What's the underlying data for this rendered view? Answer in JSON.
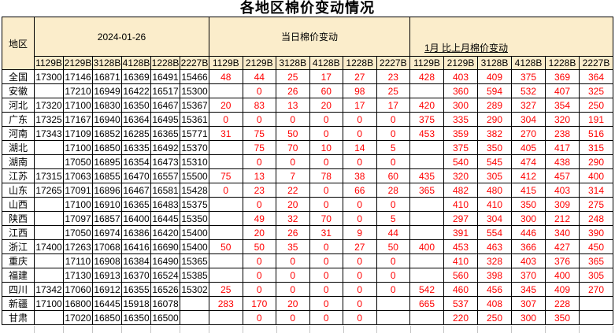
{
  "colors": {
    "header_bg": "#FBEDCB",
    "change_color": "#FF0000",
    "border": "#000000",
    "gridline_stub": "#C4C4C4"
  },
  "chart_data": {
    "type": "table",
    "title": "各地区棉价变动情况",
    "region_header": "地区",
    "column_groups": [
      "2024-01-26",
      "当日棉价变动",
      "1月 比上月棉价变动"
    ],
    "columns_per_group": [
      "1129B",
      "2129B",
      "3128B",
      "4128B",
      "1228B",
      "2227B"
    ],
    "rows": [
      {
        "region": "全国",
        "price": [
          "17300",
          "17146",
          "16871",
          "16369",
          "16491",
          "15466"
        ],
        "daily_change": [
          "48",
          "44",
          "25",
          "17",
          "27",
          "23"
        ],
        "monthly_change": [
          "428",
          "403",
          "409",
          "375",
          "369",
          "364"
        ]
      },
      {
        "region": "安徽",
        "price": [
          "",
          "17210",
          "16949",
          "16422",
          "16517",
          "15300"
        ],
        "daily_change": [
          "",
          "0",
          "26",
          "60",
          "98",
          "25"
        ],
        "monthly_change": [
          "",
          "360",
          "594",
          "532",
          "407",
          "325"
        ]
      },
      {
        "region": "河北",
        "price": [
          "17320",
          "17100",
          "16830",
          "16350",
          "16467",
          "15367"
        ],
        "daily_change": [
          "20",
          "83",
          "13",
          "20",
          "17",
          "17"
        ],
        "monthly_change": [
          "420",
          "300",
          "289",
          "327",
          "354",
          "250"
        ]
      },
      {
        "region": "广东",
        "price": [
          "17325",
          "17167",
          "16940",
          "16364",
          "16495",
          "15361"
        ],
        "daily_change": [
          "0",
          "0",
          "0",
          "0",
          "0",
          "0"
        ],
        "monthly_change": [
          "375",
          "335",
          "290",
          "304",
          "320",
          "191"
        ]
      },
      {
        "region": "河南",
        "price": [
          "17343",
          "17109",
          "16852",
          "16285",
          "16365",
          "15771"
        ],
        "daily_change": [
          "31",
          "75",
          "50",
          "0",
          "0",
          "0"
        ],
        "monthly_change": [
          "453",
          "359",
          "382",
          "270",
          "238",
          "516"
        ]
      },
      {
        "region": "湖北",
        "price": [
          "",
          "17100",
          "16850",
          "16335",
          "16492",
          "15370"
        ],
        "daily_change": [
          "",
          "75",
          "70",
          "10",
          "14",
          "5"
        ],
        "monthly_change": [
          "",
          "375",
          "350",
          "405",
          "417",
          "315"
        ]
      },
      {
        "region": "湖南",
        "price": [
          "",
          "17050",
          "16895",
          "16354",
          "16473",
          "15310"
        ],
        "daily_change": [
          "",
          "0",
          "0",
          "0",
          "0",
          "0"
        ],
        "monthly_change": [
          "",
          "540",
          "545",
          "474",
          "438",
          "290"
        ]
      },
      {
        "region": "江苏",
        "price": [
          "17315",
          "17063",
          "16855",
          "16470",
          "16557",
          "15500"
        ],
        "daily_change": [
          "75",
          "13",
          "7",
          "78",
          "38",
          "60"
        ],
        "monthly_change": [
          "435",
          "320",
          "305",
          "412",
          "457",
          "400"
        ]
      },
      {
        "region": "山东",
        "price": [
          "17265",
          "17091",
          "16896",
          "16467",
          "16581",
          "15428"
        ],
        "daily_change": [
          "0",
          "23",
          "22",
          "0",
          "66",
          "28"
        ],
        "monthly_change": [
          "365",
          "482",
          "480",
          "415",
          "403",
          "314"
        ]
      },
      {
        "region": "山西",
        "price": [
          "",
          "17100",
          "16910",
          "16365",
          "16483",
          "15375"
        ],
        "daily_change": [
          "",
          "0",
          "20",
          "0",
          "0",
          "0"
        ],
        "monthly_change": [
          "",
          "410",
          "410",
          "350",
          "309",
          "275"
        ]
      },
      {
        "region": "陕西",
        "price": [
          "",
          "17097",
          "16857",
          "16400",
          "16445",
          "15350"
        ],
        "daily_change": [
          "",
          "49",
          "32",
          "70",
          "0",
          "5"
        ],
        "monthly_change": [
          "",
          "297",
          "304",
          "300",
          "212",
          "248"
        ]
      },
      {
        "region": "江西",
        "price": [
          "",
          "17050",
          "16974",
          "16386",
          "16420",
          "15400"
        ],
        "daily_change": [
          "",
          "20",
          "26",
          "31",
          "9",
          "44"
        ],
        "monthly_change": [
          "",
          "391",
          "554",
          "446",
          "340",
          "390"
        ]
      },
      {
        "region": "浙江",
        "price": [
          "17400",
          "17263",
          "17068",
          "16416",
          "16690",
          "15400"
        ],
        "daily_change": [
          "50",
          "50",
          "35",
          "0",
          "27",
          "50"
        ],
        "monthly_change": [
          "400",
          "453",
          "463",
          "366",
          "427",
          "450"
        ]
      },
      {
        "region": "重庆",
        "price": [
          "",
          "17110",
          "16908",
          "16384",
          "16490",
          "15365"
        ],
        "daily_change": [
          "",
          "0",
          "0",
          "0",
          "0",
          "0"
        ],
        "monthly_change": [
          "",
          "410",
          "328",
          "403",
          "376",
          "365"
        ]
      },
      {
        "region": "福建",
        "price": [
          "",
          "17130",
          "16913",
          "16370",
          "16524",
          "15385"
        ],
        "daily_change": [
          "",
          "0",
          "0",
          "0",
          "0",
          "0"
        ],
        "monthly_change": [
          "",
          "560",
          "398",
          "370",
          "400",
          "305"
        ]
      },
      {
        "region": "四川",
        "price": [
          "17342",
          "17060",
          "16912",
          "16355",
          "16526",
          "15302"
        ],
        "daily_change": [
          "25",
          "0",
          "0",
          "0",
          "0",
          "0"
        ],
        "monthly_change": [
          "542",
          "460",
          "456",
          "345",
          "409",
          "270"
        ]
      },
      {
        "region": "新疆",
        "price": [
          "17100",
          "16800",
          "16445",
          "15918",
          "16078",
          ""
        ],
        "daily_change": [
          "283",
          "170",
          "20",
          "0",
          "0",
          ""
        ],
        "monthly_change": [
          "665",
          "537",
          "408",
          "307",
          "228",
          ""
        ]
      },
      {
        "region": "甘肃",
        "price": [
          "",
          "17020",
          "16850",
          "16350",
          "16500",
          ""
        ],
        "daily_change": [
          "",
          "0",
          "0",
          "0",
          "0",
          ""
        ],
        "monthly_change": [
          "",
          "220",
          "250",
          "300",
          "350",
          ""
        ]
      }
    ]
  }
}
